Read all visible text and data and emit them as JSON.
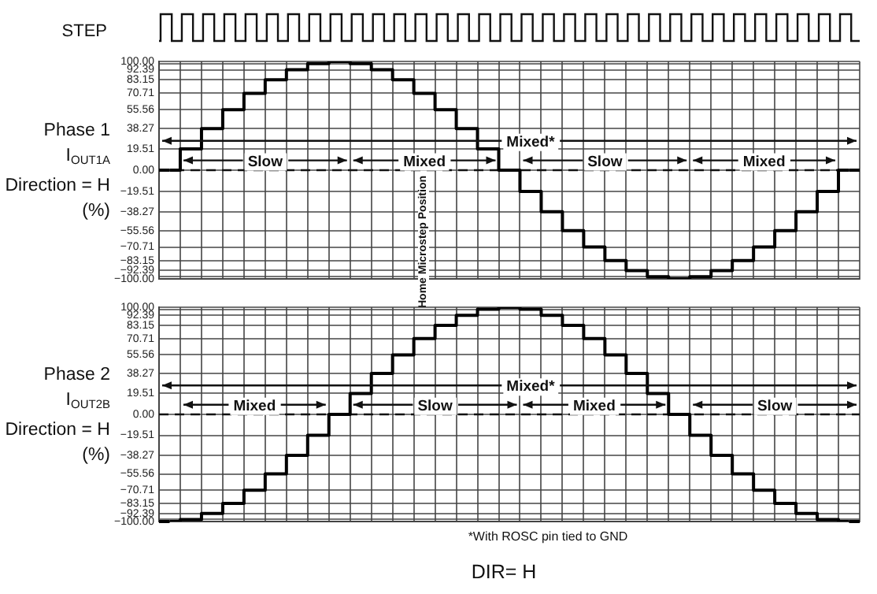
{
  "chart_data": [
    {
      "type": "step",
      "ylabel": "Phase 1\nI$_{OUT1A}$\nDirection = H\n(%)",
      "categories": [
        null,
        null,
        null,
        null,
        null,
        null,
        null,
        null,
        null,
        null,
        null,
        null,
        null,
        null,
        null,
        null,
        null,
        null,
        null,
        null,
        null,
        null,
        null,
        null,
        null,
        null,
        null,
        null,
        null,
        null,
        null,
        null,
        null
      ],
      "series": [
        {
          "color": "#000000",
          "values": [
            0,
            19.51,
            38.27,
            55.56,
            70.71,
            83.15,
            92.39,
            98.08,
            100,
            98.08,
            92.39,
            83.15,
            70.71,
            55.56,
            38.27,
            19.51,
            0,
            -19.51,
            -38.27,
            -55.56,
            -70.71,
            -83.15,
            -92.39,
            -98.08,
            -100,
            -98.08,
            -92.39,
            -83.15,
            -70.71,
            -55.56,
            -38.27,
            -19.51,
            0
          ]
        }
      ],
      "ylim": [
        -100,
        100
      ],
      "yticks": [
        {
          "value": 100,
          "label": "100.00"
        },
        {
          "value": 98.08,
          "label": null
        },
        {
          "value": 92.39,
          "label": "92.39"
        },
        {
          "value": 83.15,
          "label": "83.15"
        },
        {
          "value": 70.71,
          "label": "70.71"
        },
        {
          "value": 55.56,
          "label": "55.56"
        },
        {
          "value": 38.27,
          "label": "38.27"
        },
        {
          "value": 19.51,
          "label": "19.51"
        },
        {
          "value": 0,
          "label": "0.00"
        },
        {
          "value": -19.51,
          "label": "−19.51"
        },
        {
          "value": -38.27,
          "label": "−38.27"
        },
        {
          "value": -55.56,
          "label": "−55.56"
        },
        {
          "value": -70.71,
          "label": "−70.71"
        },
        {
          "value": -83.15,
          "label": "−83.15"
        },
        {
          "value": -92.39,
          "label": "−92.39"
        },
        {
          "value": -98.08,
          "label": null
        },
        {
          "value": -100,
          "label": "−100.00"
        }
      ],
      "grid": true,
      "tick_labels": "y",
      "marker": "none",
      "line_style": "solid",
      "ref_lines": [
        {
          "axis": "y",
          "value": 0,
          "line_style": "dashed"
        }
      ],
      "annotations": [
        "STEP",
        "Mixed*",
        "Slow",
        "Mixed",
        "Slow",
        "Mixed",
        "Home Microstep Position"
      ]
    },
    {
      "type": "step",
      "ylabel": "Phase 2\nI$_{OUT2B}$\nDirection = H\n(%)",
      "categories": [
        null,
        null,
        null,
        null,
        null,
        null,
        null,
        null,
        null,
        null,
        null,
        null,
        null,
        null,
        null,
        null,
        null,
        null,
        null,
        null,
        null,
        null,
        null,
        null,
        null,
        null,
        null,
        null,
        null,
        null,
        null,
        null,
        null
      ],
      "series": [
        {
          "color": "#000000",
          "values": [
            -100,
            -98.08,
            -92.39,
            -83.15,
            -70.71,
            -55.56,
            -38.27,
            -19.51,
            0,
            19.51,
            38.27,
            55.56,
            70.71,
            83.15,
            92.39,
            98.08,
            100,
            98.08,
            92.39,
            83.15,
            70.71,
            55.56,
            38.27,
            19.51,
            0,
            -19.51,
            -38.27,
            -55.56,
            -70.71,
            -83.15,
            -92.39,
            -98.08,
            -100
          ]
        }
      ],
      "ylim": [
        -100,
        100
      ],
      "yticks": [
        {
          "value": 100,
          "label": "100.00"
        },
        {
          "value": 98.08,
          "label": null
        },
        {
          "value": 92.39,
          "label": "92.39"
        },
        {
          "value": 83.15,
          "label": "83.15"
        },
        {
          "value": 70.71,
          "label": "70.71"
        },
        {
          "value": 55.56,
          "label": "55.56"
        },
        {
          "value": 38.27,
          "label": "38.27"
        },
        {
          "value": 19.51,
          "label": "19.51"
        },
        {
          "value": 0,
          "label": "0.00"
        },
        {
          "value": -19.51,
          "label": "−19.51"
        },
        {
          "value": -38.27,
          "label": "−38.27"
        },
        {
          "value": -55.56,
          "label": "−55.56"
        },
        {
          "value": -70.71,
          "label": "−70.71"
        },
        {
          "value": -83.15,
          "label": "−83.15"
        },
        {
          "value": -92.39,
          "label": "−92.39"
        },
        {
          "value": -98.08,
          "label": null
        },
        {
          "value": -100,
          "label": "−100.00"
        }
      ],
      "grid": true,
      "tick_labels": "y",
      "marker": "none",
      "line_style": "solid",
      "ref_lines": [
        {
          "axis": "y",
          "value": 0,
          "line_style": "dashed"
        }
      ],
      "annotations": [
        "Mixed*",
        "Mixed",
        "Slow",
        "Mixed",
        "Slow",
        "*With ROSC pin tied to GND",
        "DIR= H"
      ]
    }
  ]
}
